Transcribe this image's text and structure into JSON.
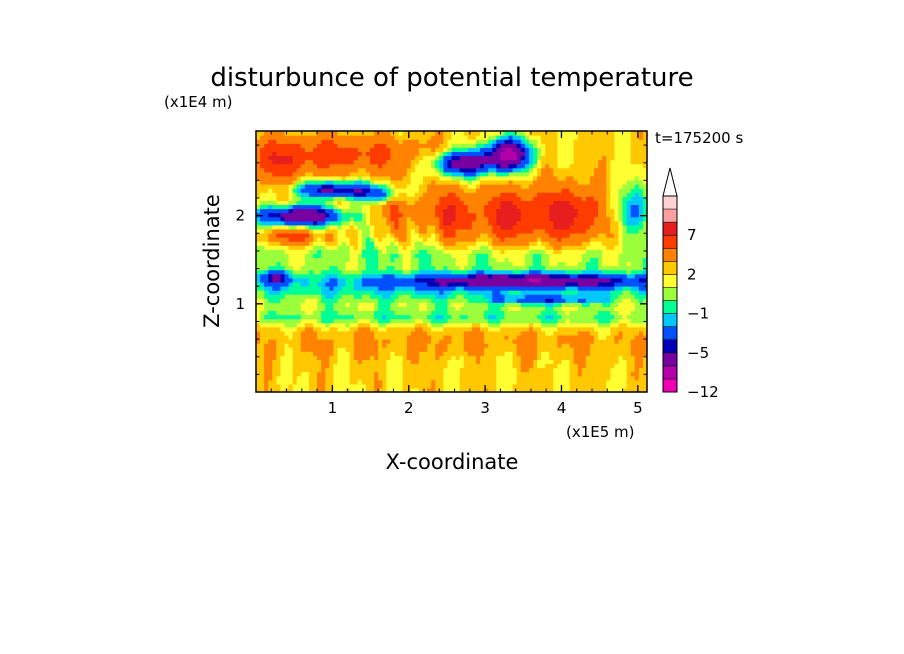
{
  "chart_data": {
    "type": "heatmap",
    "title": "disturbunce of potential temperature",
    "time_label": "t=175200 s",
    "xlabel": "X-coordinate",
    "ylabel": "Z-coordinate",
    "x_unit": "(x1E5 m)",
    "y_unit": "(x1E4 m)",
    "xlim": [
      0,
      5.12
    ],
    "ylim": [
      0,
      2.96
    ],
    "xticks": [
      "1",
      "2",
      "3",
      "4",
      "5"
    ],
    "yticks": [
      "1",
      "2"
    ],
    "colorbar": {
      "levels": [
        -12,
        -10,
        -8,
        -5,
        -4,
        -2,
        -1,
        0,
        1,
        2,
        3,
        5,
        7,
        9,
        11
      ],
      "labels": [
        "7",
        "2",
        "−1",
        "−5",
        "−12"
      ],
      "colors": [
        "#f000b4",
        "#b400aa",
        "#7800a0",
        "#0000b4",
        "#0050ff",
        "#00c8ff",
        "#00ff96",
        "#9bff3c",
        "#ffff32",
        "#ffc800",
        "#ff8200",
        "#ff3c00",
        "#e61e1e",
        "#ffa0a0",
        "#ffd2d2"
      ],
      "extend": "max"
    }
  }
}
